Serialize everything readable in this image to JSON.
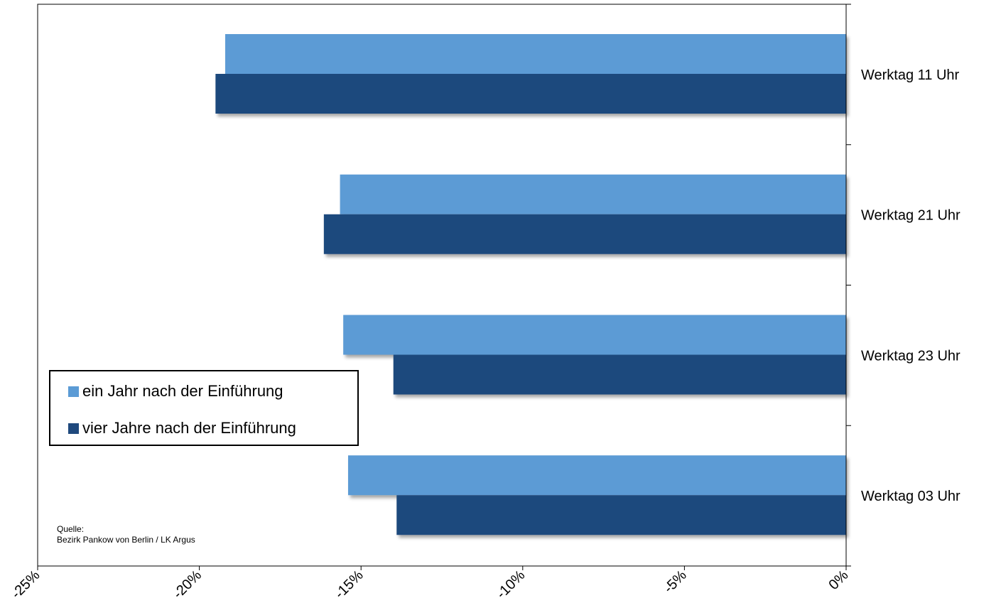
{
  "chart_data": {
    "type": "bar",
    "orientation": "horizontal",
    "categories": [
      "Werktag 11 Uhr",
      "Werktag 21 Uhr",
      "Werktag 23 Uhr",
      "Werktag 03 Uhr"
    ],
    "series": [
      {
        "name": "ein Jahr nach der Einführung",
        "color": "#5b9bd5",
        "values": [
          -19.2,
          -15.65,
          -15.55,
          -15.4
        ]
      },
      {
        "name": "vier Jahre nach der Einführung",
        "color": "#1f497d",
        "values": [
          -19.5,
          -16.15,
          -14.0,
          -13.9
        ]
      }
    ],
    "xlim": [
      -25,
      0
    ],
    "x_ticks": [
      -25,
      -20,
      -15,
      -10,
      -5,
      0
    ],
    "x_tick_labels": [
      "-25%",
      "-20%",
      "-15%",
      "-10%",
      "-5%",
      "0%"
    ],
    "title": "",
    "xlabel": "",
    "ylabel": "",
    "legend_position": "lower-left",
    "grid": false
  },
  "source_note": {
    "line1": "Quelle:",
    "line2": "Bezirk Pankow von Berlin / LK Argus"
  }
}
